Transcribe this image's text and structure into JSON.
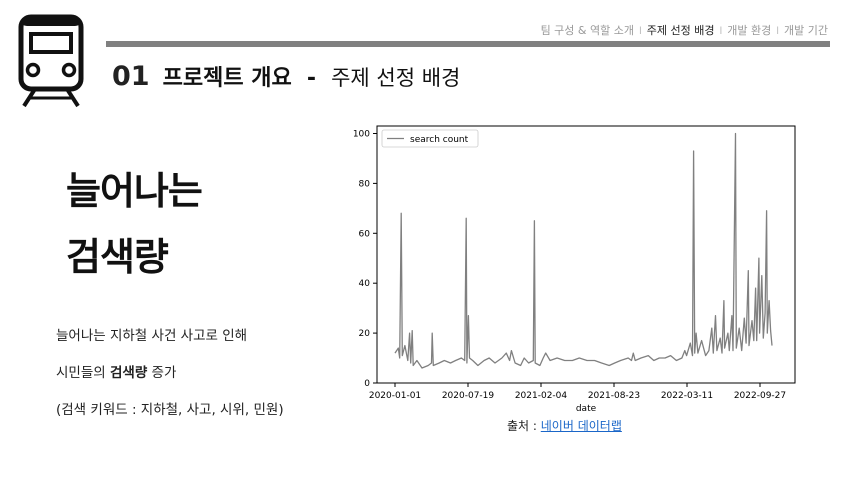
{
  "nav": {
    "items": [
      {
        "label": "팀 구성 & 역할 소개",
        "active": false
      },
      {
        "label": "주제 선정 배경",
        "active": true
      },
      {
        "label": "개발 환경",
        "active": false
      },
      {
        "label": "개발 기간",
        "active": false
      }
    ],
    "separator": "l"
  },
  "logo_icon": "train-icon",
  "header": {
    "number": "01",
    "section": "프로젝트 개요",
    "dash": "-",
    "subtitle": "주제 선정 배경"
  },
  "title": {
    "line1": "늘어나는",
    "line2": "검색량"
  },
  "description": {
    "line1": "늘어나는 지하철 사건 사고로 인해",
    "line2_prefix": "시민들의 ",
    "line2_bold": "검색량",
    "line2_suffix": " 증가",
    "line3": "(검색 키워드 : 지하철, 사고, 시위, 민원)"
  },
  "source": {
    "label": "출처 : ",
    "link_text": "네이버 데이터랩"
  },
  "colors": {
    "nav_bar": "#808080",
    "series_line": "#808080",
    "link": "#1a66c8"
  },
  "chart_data": {
    "type": "line",
    "xlabel": "date",
    "ylabel": "",
    "x_start": "2020-01-01",
    "x_end": "2022-12-10",
    "ylim": [
      0,
      103
    ],
    "yticks": [
      0,
      20,
      40,
      60,
      80,
      100
    ],
    "xticks": [
      "2020-01-01",
      "2020-07-19",
      "2021-02-04",
      "2021-08-23",
      "2022-03-11",
      "2022-09-27"
    ],
    "legend": "top-left",
    "grid": false,
    "series": [
      {
        "name": "search count",
        "color": "#808080",
        "points": [
          [
            "2020-01-01",
            12
          ],
          [
            "2020-01-10",
            14
          ],
          [
            "2020-01-14",
            10
          ],
          [
            "2020-01-18",
            68
          ],
          [
            "2020-01-21",
            11
          ],
          [
            "2020-01-28",
            15
          ],
          [
            "2020-02-05",
            9
          ],
          [
            "2020-02-10",
            20
          ],
          [
            "2020-02-13",
            8
          ],
          [
            "2020-02-17",
            21
          ],
          [
            "2020-02-20",
            7
          ],
          [
            "2020-03-01",
            9
          ],
          [
            "2020-03-15",
            6
          ],
          [
            "2020-04-01",
            7
          ],
          [
            "2020-04-10",
            8
          ],
          [
            "2020-04-12",
            20
          ],
          [
            "2020-04-15",
            7
          ],
          [
            "2020-05-01",
            8
          ],
          [
            "2020-05-15",
            9
          ],
          [
            "2020-06-01",
            8
          ],
          [
            "2020-06-15",
            9
          ],
          [
            "2020-07-01",
            10
          ],
          [
            "2020-07-10",
            9
          ],
          [
            "2020-07-14",
            66
          ],
          [
            "2020-07-16",
            8
          ],
          [
            "2020-07-20",
            27
          ],
          [
            "2020-07-23",
            10
          ],
          [
            "2020-08-01",
            9
          ],
          [
            "2020-08-15",
            7
          ],
          [
            "2020-09-01",
            9
          ],
          [
            "2020-09-15",
            10
          ],
          [
            "2020-10-01",
            8
          ],
          [
            "2020-10-20",
            10
          ],
          [
            "2020-11-01",
            12
          ],
          [
            "2020-11-10",
            9
          ],
          [
            "2020-11-15",
            13
          ],
          [
            "2020-11-25",
            8
          ],
          [
            "2020-12-10",
            7
          ],
          [
            "2020-12-20",
            10
          ],
          [
            "2021-01-01",
            8
          ],
          [
            "2021-01-14",
            9
          ],
          [
            "2021-01-17",
            65
          ],
          [
            "2021-01-19",
            8
          ],
          [
            "2021-02-01",
            7
          ],
          [
            "2021-02-10",
            10
          ],
          [
            "2021-02-17",
            12
          ],
          [
            "2021-03-01",
            9
          ],
          [
            "2021-03-20",
            10
          ],
          [
            "2021-04-10",
            9
          ],
          [
            "2021-05-01",
            9
          ],
          [
            "2021-05-20",
            10
          ],
          [
            "2021-06-10",
            9
          ],
          [
            "2021-07-01",
            9
          ],
          [
            "2021-07-20",
            8
          ],
          [
            "2021-08-10",
            7
          ],
          [
            "2021-08-25",
            8
          ],
          [
            "2021-09-10",
            9
          ],
          [
            "2021-10-01",
            10
          ],
          [
            "2021-10-10",
            9
          ],
          [
            "2021-10-15",
            12
          ],
          [
            "2021-10-20",
            9
          ],
          [
            "2021-11-05",
            10
          ],
          [
            "2021-11-25",
            11
          ],
          [
            "2021-12-10",
            9
          ],
          [
            "2021-12-25",
            10
          ],
          [
            "2022-01-10",
            10
          ],
          [
            "2022-01-25",
            11
          ],
          [
            "2022-02-10",
            9
          ],
          [
            "2022-02-25",
            10
          ],
          [
            "2022-03-05",
            13
          ],
          [
            "2022-03-10",
            11
          ],
          [
            "2022-03-20",
            16
          ],
          [
            "2022-03-26",
            11
          ],
          [
            "2022-03-29",
            93
          ],
          [
            "2022-04-01",
            12
          ],
          [
            "2022-04-05",
            20
          ],
          [
            "2022-04-10",
            12
          ],
          [
            "2022-04-20",
            17
          ],
          [
            "2022-05-01",
            11
          ],
          [
            "2022-05-10",
            13
          ],
          [
            "2022-05-18",
            22
          ],
          [
            "2022-05-22",
            12
          ],
          [
            "2022-05-28",
            27
          ],
          [
            "2022-06-01",
            13
          ],
          [
            "2022-06-10",
            18
          ],
          [
            "2022-06-15",
            12
          ],
          [
            "2022-06-20",
            33
          ],
          [
            "2022-06-22",
            14
          ],
          [
            "2022-07-01",
            20
          ],
          [
            "2022-07-05",
            13
          ],
          [
            "2022-07-12",
            27
          ],
          [
            "2022-07-15",
            13
          ],
          [
            "2022-07-22",
            100
          ],
          [
            "2022-07-24",
            14
          ],
          [
            "2022-08-01",
            22
          ],
          [
            "2022-08-08",
            13
          ],
          [
            "2022-08-15",
            26
          ],
          [
            "2022-08-20",
            16
          ],
          [
            "2022-08-26",
            45
          ],
          [
            "2022-08-28",
            15
          ],
          [
            "2022-09-05",
            25
          ],
          [
            "2022-09-10",
            17
          ],
          [
            "2022-09-15",
            38
          ],
          [
            "2022-09-18",
            17
          ],
          [
            "2022-09-24",
            50
          ],
          [
            "2022-09-26",
            20
          ],
          [
            "2022-10-02",
            43
          ],
          [
            "2022-10-06",
            18
          ],
          [
            "2022-10-11",
            28
          ],
          [
            "2022-10-15",
            69
          ],
          [
            "2022-10-17",
            20
          ],
          [
            "2022-10-22",
            33
          ],
          [
            "2022-10-26",
            21
          ],
          [
            "2022-10-30",
            15
          ]
        ]
      }
    ]
  }
}
